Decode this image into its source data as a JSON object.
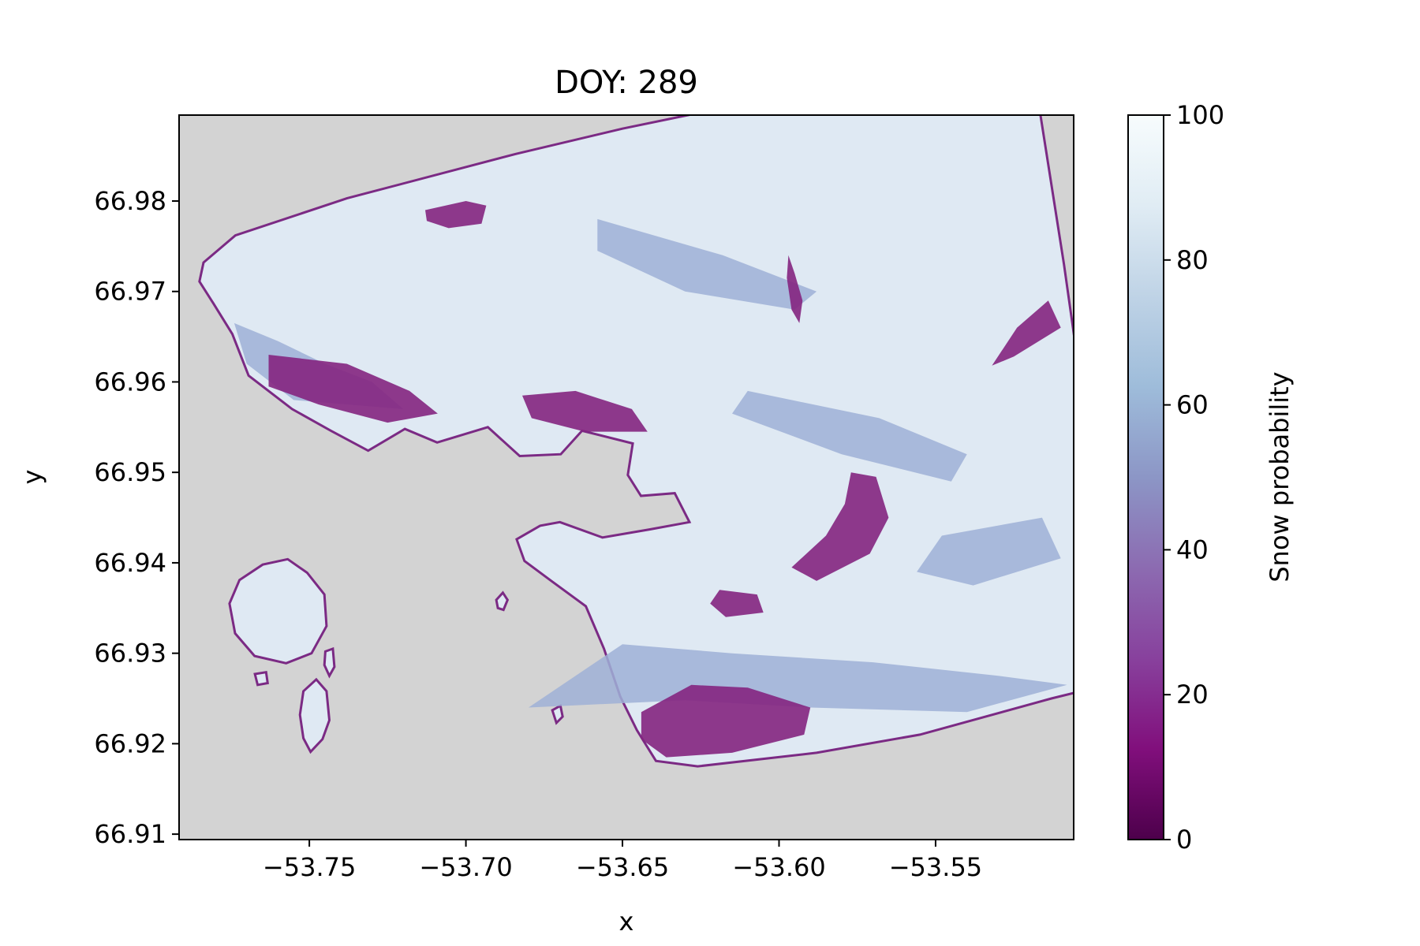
{
  "chart_data": {
    "type": "heatmap",
    "title": "DOY: 289",
    "xlabel": "x",
    "ylabel": "y",
    "xlim": [
      -53.7916,
      -53.5059
    ],
    "ylim": [
      66.9094,
      66.9895
    ],
    "x_ticks": [
      -53.75,
      -53.7,
      -53.65,
      -53.6,
      -53.55
    ],
    "x_tick_labels": [
      "−53.75",
      "−53.70",
      "−53.65",
      "−53.60",
      "−53.55"
    ],
    "y_ticks": [
      66.91,
      66.92,
      66.93,
      66.94,
      66.95,
      66.96,
      66.97,
      66.98
    ],
    "y_tick_labels": [
      "66.91",
      "66.92",
      "66.93",
      "66.94",
      "66.95",
      "66.96",
      "66.97",
      "66.98"
    ],
    "colorbar": {
      "label": "Snow probability",
      "range": [
        0,
        100
      ],
      "ticks": [
        0,
        20,
        40,
        60,
        80,
        100
      ],
      "tick_labels": [
        "0",
        "20",
        "40",
        "60",
        "80",
        "100"
      ],
      "colormap": "BuPu_r"
    },
    "nodata_color": "#d3d3d3",
    "landmass": {
      "outline": [
        [
          -53.7838,
          66.9732
        ],
        [
          -53.7736,
          66.9762
        ],
        [
          -53.738,
          66.9803
        ],
        [
          -53.6841,
          66.9852
        ],
        [
          -53.65,
          66.988
        ],
        [
          -53.615,
          66.9905
        ],
        [
          -53.575,
          66.9935
        ],
        [
          -53.527,
          66.9955
        ],
        [
          -53.5165,
          66.9895
        ],
        [
          -53.509,
          66.973
        ],
        [
          -53.5,
          66.951
        ],
        [
          -53.4954,
          66.9265
        ],
        [
          -53.513,
          66.925
        ],
        [
          -53.555,
          66.921
        ],
        [
          -53.588,
          66.919
        ],
        [
          -53.626,
          66.9175
        ],
        [
          -53.6393,
          66.9181
        ],
        [
          -53.6454,
          66.9215
        ],
        [
          -53.6507,
          66.9252
        ],
        [
          -53.6559,
          66.9305
        ],
        [
          -53.6617,
          66.9352
        ],
        [
          -53.6727,
          66.938
        ],
        [
          -53.6813,
          66.9402
        ],
        [
          -53.6838,
          66.9426
        ],
        [
          -53.6763,
          66.9441
        ],
        [
          -53.67,
          66.9445
        ],
        [
          -53.6564,
          66.9428
        ],
        [
          -53.6412,
          66.9437
        ],
        [
          -53.6286,
          66.9445
        ],
        [
          -53.6333,
          66.9477
        ],
        [
          -53.6441,
          66.9474
        ],
        [
          -53.6483,
          66.9497
        ],
        [
          -53.6467,
          66.9532
        ],
        [
          -53.6629,
          66.9546
        ],
        [
          -53.6697,
          66.952
        ],
        [
          -53.6828,
          66.9518
        ],
        [
          -53.693,
          66.955
        ],
        [
          -53.7092,
          66.9533
        ],
        [
          -53.7195,
          66.9548
        ],
        [
          -53.7312,
          66.9524
        ],
        [
          -53.7431,
          66.9546
        ],
        [
          -53.7555,
          66.957
        ],
        [
          -53.7694,
          66.9607
        ],
        [
          -53.7746,
          66.9653
        ],
        [
          -53.7807,
          66.9687
        ],
        [
          -53.7851,
          66.9711
        ]
      ],
      "islands": [
        [
          [
            -53.7755,
            66.9355
          ],
          [
            -53.7723,
            66.9381
          ],
          [
            -53.7649,
            66.9398
          ],
          [
            -53.7569,
            66.9404
          ],
          [
            -53.7507,
            66.9389
          ],
          [
            -53.7452,
            66.9365
          ],
          [
            -53.7445,
            66.933
          ],
          [
            -53.7493,
            66.93
          ],
          [
            -53.7574,
            66.9289
          ],
          [
            -53.7675,
            66.9297
          ],
          [
            -53.7737,
            66.9322
          ]
        ],
        [
          [
            -53.7519,
            66.9258
          ],
          [
            -53.7478,
            66.9271
          ],
          [
            -53.7445,
            66.9258
          ],
          [
            -53.7436,
            66.9226
          ],
          [
            -53.7458,
            66.9205
          ],
          [
            -53.7496,
            66.9191
          ],
          [
            -53.7519,
            66.9206
          ],
          [
            -53.753,
            66.9232
          ]
        ],
        [
          [
            -53.7449,
            66.9302
          ],
          [
            -53.7425,
            66.9305
          ],
          [
            -53.742,
            66.9285
          ],
          [
            -53.7436,
            66.9275
          ],
          [
            -53.7452,
            66.9287
          ]
        ],
        [
          [
            -53.7674,
            66.9277
          ],
          [
            -53.7638,
            66.9279
          ],
          [
            -53.7633,
            66.9267
          ],
          [
            -53.7665,
            66.9265
          ]
        ],
        [
          [
            -53.6903,
            66.9359
          ],
          [
            -53.6882,
            66.9367
          ],
          [
            -53.6867,
            66.9359
          ],
          [
            -53.688,
            66.9348
          ],
          [
            -53.6898,
            66.935
          ]
        ],
        [
          [
            -53.6724,
            66.9237
          ],
          [
            -53.6698,
            66.9242
          ],
          [
            -53.6691,
            66.923
          ],
          [
            -53.6711,
            66.9223
          ]
        ]
      ],
      "low_snow_patches": [
        [
          [
            -53.713,
            66.979
          ],
          [
            -53.7,
            66.98
          ],
          [
            -53.6935,
            66.9795
          ],
          [
            -53.695,
            66.9775
          ],
          [
            -53.7055,
            66.977
          ],
          [
            -53.7125,
            66.9778
          ]
        ],
        [
          [
            -53.763,
            66.963
          ],
          [
            -53.738,
            66.962
          ],
          [
            -53.718,
            66.959
          ],
          [
            -53.709,
            66.9565
          ],
          [
            -53.725,
            66.9555
          ],
          [
            -53.747,
            66.9575
          ],
          [
            -53.763,
            66.9595
          ]
        ],
        [
          [
            -53.682,
            66.9585
          ],
          [
            -53.665,
            66.959
          ],
          [
            -53.647,
            66.957
          ],
          [
            -53.642,
            66.9545
          ],
          [
            -53.662,
            66.9545
          ],
          [
            -53.679,
            66.956
          ]
        ],
        [
          [
            -53.644,
            66.9235
          ],
          [
            -53.628,
            66.9265
          ],
          [
            -53.61,
            66.9262
          ],
          [
            -53.59,
            66.924
          ],
          [
            -53.592,
            66.921
          ],
          [
            -53.615,
            66.919
          ],
          [
            -53.636,
            66.9185
          ],
          [
            -53.644,
            66.9205
          ]
        ],
        [
          [
            -53.577,
            66.95
          ],
          [
            -53.569,
            66.9495
          ],
          [
            -53.565,
            66.945
          ],
          [
            -53.571,
            66.941
          ],
          [
            -53.588,
            66.938
          ],
          [
            -53.596,
            66.9395
          ],
          [
            -53.585,
            66.943
          ],
          [
            -53.579,
            66.9465
          ]
        ],
        [
          [
            -53.619,
            66.937
          ],
          [
            -53.607,
            66.9365
          ],
          [
            -53.605,
            66.9345
          ],
          [
            -53.617,
            66.934
          ],
          [
            -53.622,
            66.9355
          ]
        ],
        [
          [
            -53.597,
            66.974
          ],
          [
            -53.595,
            66.972
          ],
          [
            -53.5925,
            66.969
          ],
          [
            -53.5935,
            66.9665
          ],
          [
            -53.596,
            66.968
          ],
          [
            -53.5975,
            66.9715
          ]
        ],
        [
          [
            -53.514,
            66.969
          ],
          [
            -53.51,
            66.966
          ],
          [
            -53.525,
            66.9628
          ],
          [
            -53.532,
            66.9618
          ],
          [
            -53.524,
            66.966
          ]
        ]
      ],
      "mid_snow_patches": [
        [
          [
            -53.658,
            66.978
          ],
          [
            -53.618,
            66.974
          ],
          [
            -53.588,
            66.97
          ],
          [
            -53.595,
            66.968
          ],
          [
            -53.63,
            66.97
          ],
          [
            -53.658,
            66.9745
          ]
        ],
        [
          [
            -53.61,
            66.959
          ],
          [
            -53.568,
            66.956
          ],
          [
            -53.54,
            66.952
          ],
          [
            -53.545,
            66.949
          ],
          [
            -53.58,
            66.952
          ],
          [
            -53.615,
            66.9565
          ]
        ],
        [
          [
            -53.548,
            66.943
          ],
          [
            -53.516,
            66.945
          ],
          [
            -53.51,
            66.9405
          ],
          [
            -53.538,
            66.9375
          ],
          [
            -53.556,
            66.939
          ]
        ],
        [
          [
            -53.68,
            66.924
          ],
          [
            -53.65,
            66.931
          ],
          [
            -53.615,
            66.93
          ],
          [
            -53.57,
            66.929
          ],
          [
            -53.53,
            66.9275
          ],
          [
            -53.508,
            66.9265
          ],
          [
            -53.54,
            66.9235
          ],
          [
            -53.59,
            66.924
          ],
          [
            -53.63,
            66.9248
          ]
        ],
        [
          [
            -53.774,
            66.9665
          ],
          [
            -53.76,
            66.9645
          ],
          [
            -53.745,
            66.962
          ],
          [
            -53.73,
            66.96
          ],
          [
            -53.72,
            66.957
          ],
          [
            -53.755,
            66.958
          ],
          [
            -53.77,
            66.962
          ]
        ]
      ]
    }
  }
}
